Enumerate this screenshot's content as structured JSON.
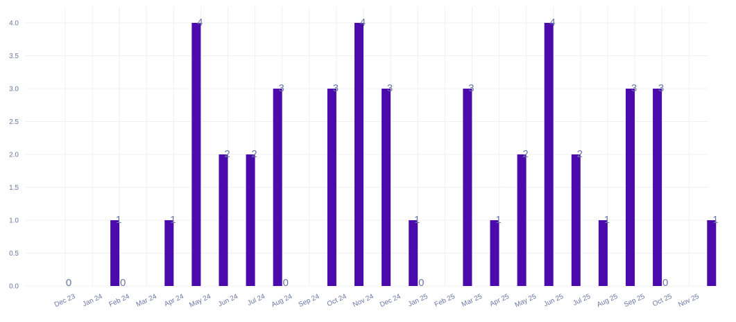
{
  "chart_data": {
    "type": "bar",
    "categories": [
      "Dec 23",
      "Jan 24",
      "Feb 24",
      "Mar 24",
      "Apr 24",
      "May 24",
      "Jun 24",
      "Jul 24",
      "Aug 24",
      "Sep 24",
      "Oct 24",
      "Nov 24",
      "Dec 24",
      "Jan 25",
      "Feb 25",
      "Mar 25",
      "Apr 25",
      "May 25",
      "Jun 25",
      "Jul 25",
      "Aug 25",
      "Sep 25",
      "Oct 25",
      "Nov 25"
    ],
    "values": [
      0,
      1,
      0,
      1,
      4,
      2,
      2,
      3,
      0,
      3,
      4,
      3,
      1,
      0,
      3,
      1,
      2,
      4,
      2,
      1,
      3,
      3,
      0,
      1
    ],
    "yticks": [
      "0.0",
      "0.5",
      "1.0",
      "1.5",
      "2.0",
      "2.5",
      "3.0",
      "3.5",
      "4.0"
    ],
    "ylim": [
      0,
      4
    ],
    "title": "",
    "xlabel": "",
    "ylabel": "",
    "grid": true,
    "bar_color": "#4b0aab",
    "label_color": "#6b76a6",
    "grid_color": "#f0f0f0"
  }
}
